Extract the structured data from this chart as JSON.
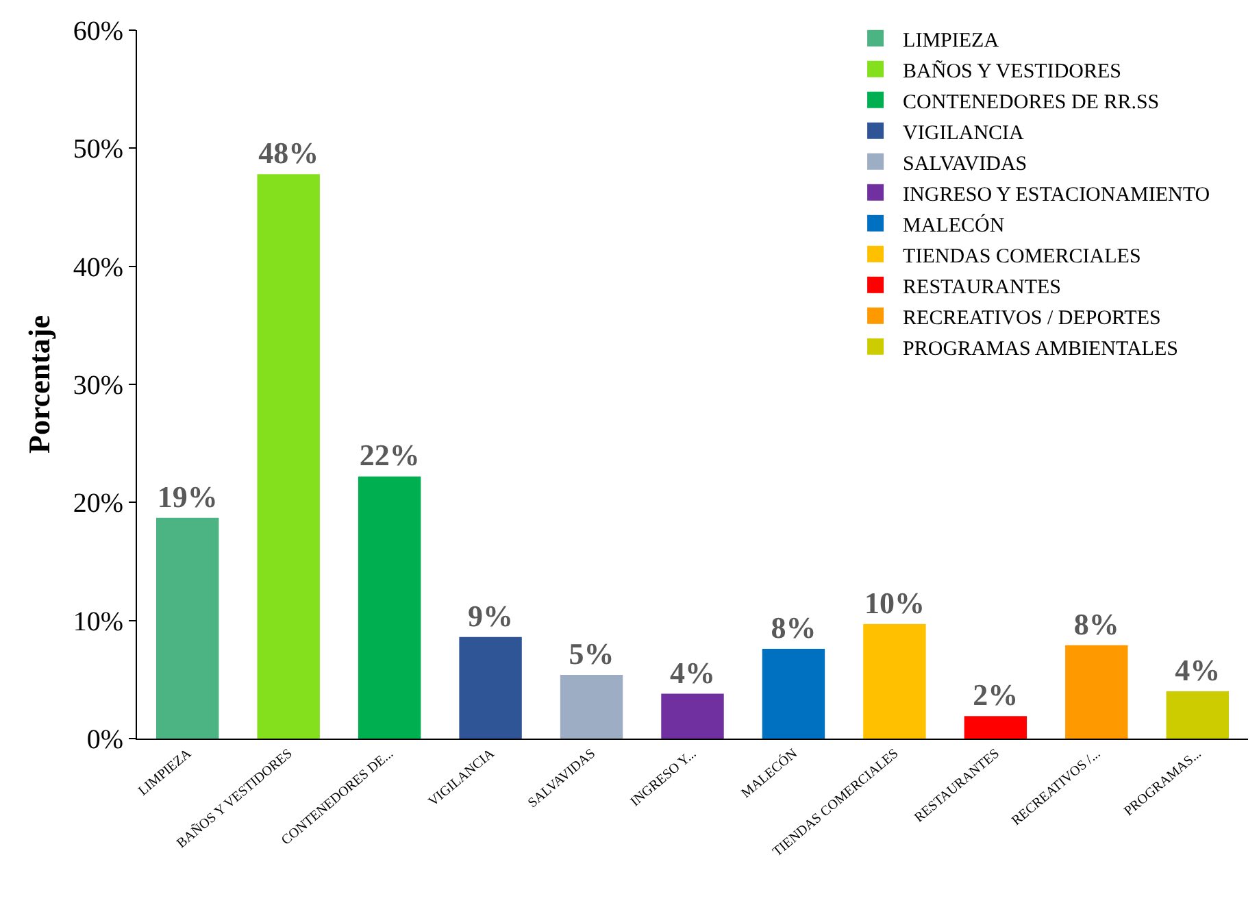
{
  "chart_data": {
    "type": "bar",
    "ylabel": "Porcentaje",
    "categories": [
      "LIMPIEZA",
      "BAÑOS Y VESTIDORES",
      "CONTENEDORES DE...",
      "VIGILANCIA",
      "SALVAVIDAS",
      "INGRESO Y...",
      "MALECÓN",
      "TIENDAS COMERCIALES",
      "RESTAURANTES",
      "RECREATIVOS /...",
      "PROGRAMAS..."
    ],
    "series": [
      {
        "name": "LIMPIEZA",
        "color": "#4cb383",
        "values": [
          18.7,
          null,
          null,
          null,
          null,
          null,
          null,
          null,
          null,
          null,
          null
        ],
        "value_labels": [
          "19%",
          null,
          null,
          null,
          null,
          null,
          null,
          null,
          null,
          null,
          null
        ]
      },
      {
        "name": "BAÑOS Y VESTIDORES",
        "color": "#84e01c",
        "values": [
          null,
          47.8,
          null,
          null,
          null,
          null,
          null,
          null,
          null,
          null,
          null
        ],
        "value_labels": [
          null,
          "48%",
          null,
          null,
          null,
          null,
          null,
          null,
          null,
          null,
          null
        ]
      },
      {
        "name": "CONTENEDORES DE RR.SS",
        "color": "#00b050",
        "values": [
          null,
          null,
          22.2,
          null,
          null,
          null,
          null,
          null,
          null,
          null,
          null
        ],
        "value_labels": [
          null,
          null,
          "22%",
          null,
          null,
          null,
          null,
          null,
          null,
          null,
          null
        ]
      },
      {
        "name": "VIGILANCIA",
        "color": "#2f5597",
        "values": [
          null,
          null,
          null,
          8.6,
          null,
          null,
          null,
          null,
          null,
          null,
          null
        ],
        "value_labels": [
          null,
          null,
          null,
          "9%",
          null,
          null,
          null,
          null,
          null,
          null,
          null
        ]
      },
      {
        "name": "SALVAVIDAS",
        "color": "#9dadc4",
        "values": [
          null,
          null,
          null,
          null,
          5.4,
          null,
          null,
          null,
          null,
          null,
          null
        ],
        "value_labels": [
          null,
          null,
          null,
          null,
          "5%",
          null,
          null,
          null,
          null,
          null,
          null
        ]
      },
      {
        "name": "INGRESO Y ESTACIONAMIENTO",
        "color": "#7030a0",
        "values": [
          null,
          null,
          null,
          null,
          null,
          3.8,
          null,
          null,
          null,
          null,
          null
        ],
        "value_labels": [
          null,
          null,
          null,
          null,
          null,
          "4%",
          null,
          null,
          null,
          null,
          null
        ]
      },
      {
        "name": "MALECÓN",
        "color": "#0070c0",
        "values": [
          null,
          null,
          null,
          null,
          null,
          null,
          7.6,
          null,
          null,
          null,
          null
        ],
        "value_labels": [
          null,
          null,
          null,
          null,
          null,
          null,
          "8%",
          null,
          null,
          null,
          null
        ]
      },
      {
        "name": "TIENDAS COMERCIALES",
        "color": "#ffc000",
        "values": [
          null,
          null,
          null,
          null,
          null,
          null,
          null,
          9.7,
          null,
          null,
          null
        ],
        "value_labels": [
          null,
          null,
          null,
          null,
          null,
          null,
          null,
          "10%",
          null,
          null,
          null
        ]
      },
      {
        "name": "RESTAURANTES",
        "color": "#ff0000",
        "values": [
          null,
          null,
          null,
          null,
          null,
          null,
          null,
          null,
          1.9,
          null,
          null
        ],
        "value_labels": [
          null,
          null,
          null,
          null,
          null,
          null,
          null,
          null,
          "2%",
          null,
          null
        ]
      },
      {
        "name": "RECREATIVOS / DEPORTES",
        "color": "#ff9900",
        "values": [
          null,
          null,
          null,
          null,
          null,
          null,
          null,
          null,
          null,
          7.9,
          null
        ],
        "value_labels": [
          null,
          null,
          null,
          null,
          null,
          null,
          null,
          null,
          null,
          "8%",
          null
        ]
      },
      {
        "name": "PROGRAMAS AMBIENTALES",
        "color": "#cccc00",
        "values": [
          null,
          null,
          null,
          null,
          null,
          null,
          null,
          null,
          null,
          null,
          4.0
        ],
        "value_labels": [
          null,
          null,
          null,
          null,
          null,
          null,
          null,
          null,
          null,
          null,
          "4%"
        ]
      }
    ],
    "ylim": [
      0,
      60
    ],
    "yticks": [
      {
        "value": 0,
        "label": "0%"
      },
      {
        "value": 10,
        "label": "10%"
      },
      {
        "value": 20,
        "label": "20%"
      },
      {
        "value": 30,
        "label": "30%"
      },
      {
        "value": 40,
        "label": "40%"
      },
      {
        "value": 50,
        "label": "50%"
      },
      {
        "value": 60,
        "label": "60%"
      }
    ],
    "grid": false,
    "legend": "top right"
  }
}
